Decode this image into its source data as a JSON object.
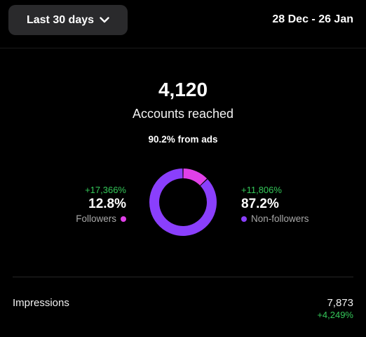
{
  "header": {
    "range_label": "Last 30 days",
    "date_range": "28 Dec - 26 Jan"
  },
  "summary": {
    "accounts_reached": "4,120",
    "accounts_reached_label": "Accounts reached",
    "ads_note": "90.2% from ads"
  },
  "followers": {
    "delta": "+17,366%",
    "percent": "12.8%",
    "label": "Followers",
    "color": "#e040e8"
  },
  "non_followers": {
    "delta": "+11,806%",
    "percent": "87.2%",
    "label": "Non-followers",
    "color": "#8a3ffc"
  },
  "impressions": {
    "label": "Impressions",
    "value": "7,873",
    "delta": "+4,249%"
  },
  "colors": {
    "positive": "#34c759",
    "background": "#000000"
  },
  "chart_data": {
    "type": "pie",
    "categories": [
      "Followers",
      "Non-followers"
    ],
    "values": [
      12.8,
      87.2
    ]
  }
}
